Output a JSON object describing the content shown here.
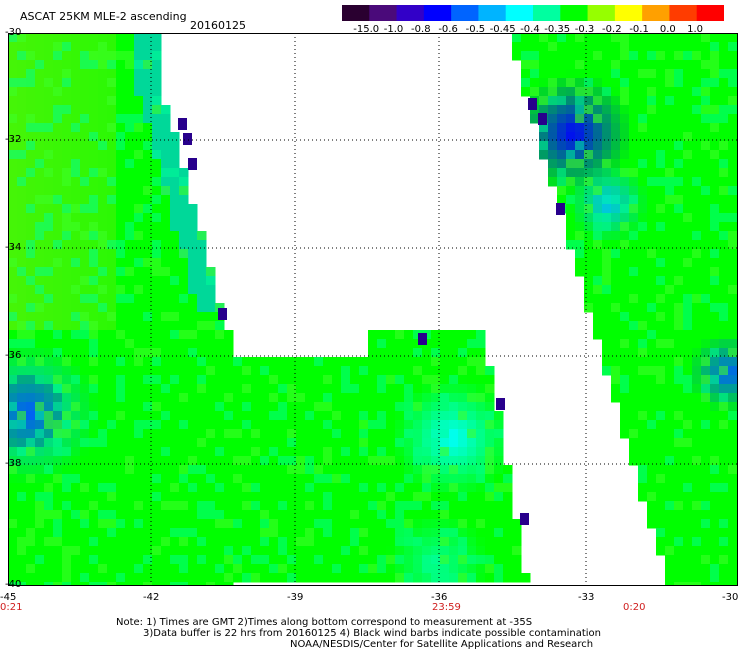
{
  "header": {
    "title": "ASCAT 25KM MLE-2 ascending",
    "date": "20160125"
  },
  "colorbar": {
    "labels": [
      "-15.0",
      "-1.0",
      "-0.8",
      "-0.6",
      "-0.5",
      "-0.45",
      "-0.4",
      "-0.35",
      "-0.3",
      "-0.2",
      "-0.1",
      "0.0",
      "1.0"
    ],
    "colors": [
      "#2a0030",
      "#4a0a7a",
      "#3200c8",
      "#0000ff",
      "#0064ff",
      "#00b4ff",
      "#00ffff",
      "#00ffa0",
      "#00ff00",
      "#96ff00",
      "#ffff00",
      "#ffa000",
      "#ff3c00",
      "#ff0000"
    ]
  },
  "map": {
    "lon_labels": [
      "-45",
      "-42",
      "-39",
      "-36",
      "-33",
      "-30"
    ],
    "lat_labels": [
      "-30",
      "-32",
      "-34",
      "-36",
      "-38",
      "-40"
    ],
    "time_labels": [
      "0:21",
      "23:59",
      "0:20"
    ]
  },
  "notes": {
    "line1": "Note: 1) Times are GMT 2)Times along bottom correspond to measurement at -35S",
    "line2": "3)Data buffer is 22 hrs from 20160125 4) Black wind barbs indicate possible contamination",
    "line3": "NOAA/NESDIS/Center for Satellite Applications and Research"
  }
}
